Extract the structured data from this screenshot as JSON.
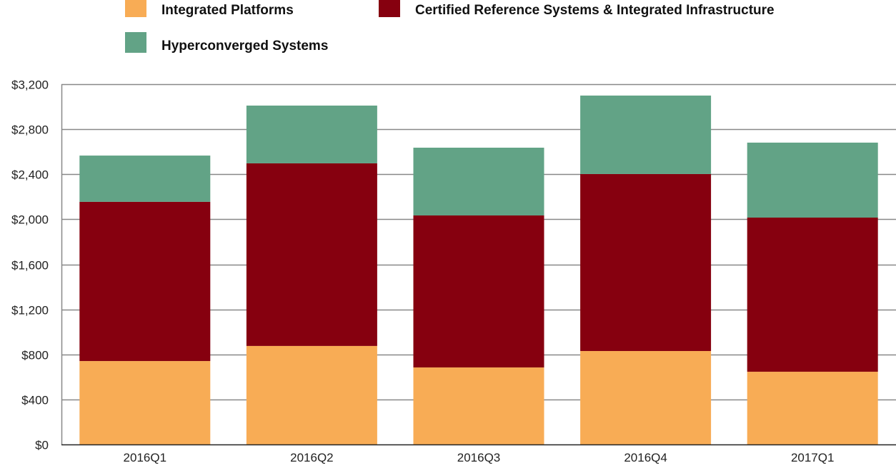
{
  "chart_data": {
    "type": "bar",
    "stacked": true,
    "title": "",
    "xlabel": "",
    "ylabel": "",
    "categories": [
      "2016Q1",
      "2016Q2",
      "2016Q3",
      "2016Q4",
      "2017Q1"
    ],
    "series": [
      {
        "name": "Integrated Platforms",
        "color": "#f8ac55",
        "values": [
          741,
          875,
          684,
          830,
          646
        ]
      },
      {
        "name": "Certified Reference Systems & Integrated Infrastructure",
        "color": "#86000f",
        "values": [
          1414,
          1622,
          1350,
          1572,
          1369
        ]
      },
      {
        "name": "Hyperconverged Systems",
        "color": "#62a386",
        "values": [
          411,
          513,
          602,
          697,
          666
        ]
      }
    ],
    "ylim": [
      0,
      3200
    ],
    "yticks": [
      0,
      400,
      800,
      1200,
      1600,
      2000,
      2400,
      2800,
      3200
    ],
    "ytick_labels": [
      "$0",
      "$400",
      "$800",
      "$1,200",
      "$1,600",
      "$2,000",
      "$2,400",
      "$2,800",
      "$3,200"
    ],
    "grid": true,
    "legend_position": "top"
  }
}
